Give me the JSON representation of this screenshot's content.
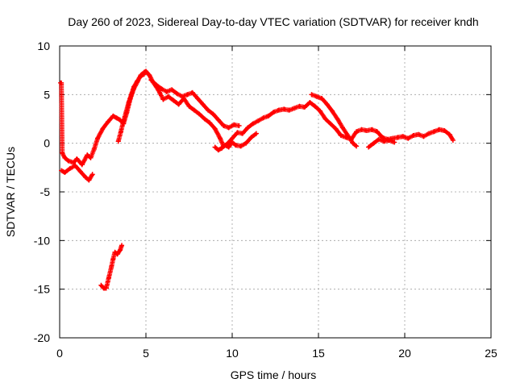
{
  "chart_data": {
    "type": "scatter",
    "title": "Day 260 of 2023, Sidereal Day-to-day VTEC variation (SDTVAR) for receiver kndh",
    "xlabel": "GPS time / hours",
    "ylabel": "SDTVAR / TECUs",
    "xlim": [
      0,
      25
    ],
    "ylim": [
      -20,
      10
    ],
    "x_ticks": [
      0,
      5,
      10,
      15,
      20,
      25
    ],
    "x_tick_labels": [
      "0",
      "5",
      "10",
      "15",
      "20",
      "25"
    ],
    "y_ticks": [
      -20,
      -15,
      -10,
      -5,
      0,
      5,
      10
    ],
    "y_tick_labels": [
      "-20",
      "-15",
      "-10",
      "-5",
      "0",
      "5",
      "10"
    ],
    "grid": true,
    "series_color": "#ff0000",
    "series": [
      {
        "name": "main-trace",
        "x": [
          0.05,
          0.1,
          0.15,
          0.3,
          0.5,
          0.8,
          1.0,
          1.3,
          1.6,
          1.8,
          2.0,
          2.2,
          2.5,
          2.8,
          3.1,
          3.3,
          3.5,
          3.7,
          3.9,
          4.1,
          4.3,
          4.5,
          4.7,
          4.9,
          5.0,
          5.2,
          5.4,
          5.6,
          5.8,
          6.0,
          6.3,
          6.6,
          6.9,
          7.2,
          7.5,
          7.8,
          8.1,
          8.4,
          8.7,
          9.0,
          9.3,
          9.5,
          9.7,
          10.0,
          10.3,
          10.6,
          10.9,
          11.2,
          11.5,
          11.8,
          12.1,
          12.4,
          12.7,
          13.0,
          13.3,
          13.6,
          13.9,
          14.2,
          14.5,
          14.8,
          15.1,
          15.4,
          15.7,
          16.0,
          16.3,
          16.6,
          16.9,
          17.2,
          17.5,
          17.8,
          18.1,
          18.4,
          18.7,
          19.0,
          19.3,
          19.6,
          19.9,
          20.2,
          20.5,
          20.8,
          21.1,
          21.4,
          21.7,
          22.0,
          22.3,
          22.6,
          22.8
        ],
        "y": [
          6.2,
          6.2,
          -1.0,
          -1.5,
          -1.8,
          -2.0,
          -1.6,
          -2.2,
          -1.2,
          -1.5,
          -0.6,
          0.5,
          1.5,
          2.2,
          2.8,
          2.6,
          2.4,
          2.0,
          3.2,
          4.6,
          5.6,
          6.3,
          7.0,
          7.3,
          7.4,
          7.0,
          6.3,
          5.8,
          5.2,
          4.5,
          4.8,
          4.4,
          4.0,
          4.6,
          3.8,
          3.4,
          3.0,
          2.5,
          2.1,
          1.5,
          0.5,
          -0.3,
          -0.1,
          0.5,
          1.1,
          1.0,
          1.6,
          2.0,
          2.3,
          2.6,
          2.8,
          3.2,
          3.4,
          3.5,
          3.4,
          3.6,
          3.8,
          3.7,
          4.2,
          3.8,
          3.3,
          2.5,
          2.0,
          1.5,
          0.8,
          0.6,
          0.4,
          1.2,
          1.4,
          1.3,
          1.4,
          1.2,
          0.6,
          0.4,
          0.5,
          0.6,
          0.7,
          0.5,
          0.8,
          0.9,
          0.7,
          1.0,
          1.2,
          1.4,
          1.3,
          0.9,
          0.3
        ]
      },
      {
        "name": "upper-branch",
        "x": [
          5.3,
          5.6,
          5.9,
          6.2,
          6.5,
          6.8,
          7.1,
          7.4,
          7.7,
          8.0,
          8.3,
          8.6,
          8.9,
          9.2,
          9.5,
          9.8,
          10.1,
          10.4
        ],
        "y": [
          6.5,
          6.0,
          5.6,
          5.3,
          5.5,
          5.1,
          4.8,
          5.0,
          5.2,
          4.6,
          4.0,
          3.4,
          3.0,
          2.4,
          1.8,
          1.6,
          1.9,
          1.8
        ]
      },
      {
        "name": "lower-branch",
        "x": [
          9.0,
          9.2,
          9.4,
          9.6,
          9.8,
          10.0,
          10.2,
          10.5,
          10.8,
          11.1,
          11.4
        ],
        "y": [
          -0.4,
          -0.7,
          -0.5,
          -0.2,
          -0.4,
          0.1,
          -0.2,
          -0.3,
          0.0,
          0.6,
          1.0
        ]
      },
      {
        "name": "mid-branch",
        "x": [
          14.6,
          14.9,
          15.2,
          15.5,
          15.8,
          16.1,
          16.4,
          16.7,
          17.0,
          17.2
        ],
        "y": [
          5.0,
          4.8,
          4.6,
          4.0,
          3.3,
          2.5,
          1.6,
          0.8,
          0.0,
          -0.3
        ]
      },
      {
        "name": "early-dip",
        "x": [
          0.1,
          0.3,
          0.6,
          0.9,
          1.2,
          1.5,
          1.7,
          1.9
        ],
        "y": [
          -2.8,
          -3.0,
          -2.6,
          -2.3,
          -2.9,
          -3.5,
          -3.8,
          -3.2
        ]
      },
      {
        "name": "rise-branch",
        "x": [
          3.4,
          3.55,
          3.7,
          3.85,
          4.0,
          4.15,
          4.3,
          4.5,
          4.7,
          4.9
        ],
        "y": [
          0.2,
          1.2,
          2.3,
          3.2,
          4.2,
          5.0,
          5.8,
          6.4,
          6.9,
          7.1
        ]
      },
      {
        "name": "late-offshoot",
        "x": [
          17.9,
          18.2,
          18.5,
          18.8,
          19.1,
          19.4
        ],
        "y": [
          -0.4,
          0.0,
          0.4,
          0.2,
          0.3,
          0.1
        ]
      },
      {
        "name": "outlier-segment",
        "x": [
          2.4,
          2.55,
          2.7,
          2.85,
          3.0,
          3.1,
          3.2,
          3.35,
          3.5,
          3.6
        ],
        "y": [
          -14.6,
          -14.9,
          -14.9,
          -13.8,
          -12.7,
          -11.9,
          -11.2,
          -11.4,
          -11.0,
          -10.5
        ]
      }
    ]
  }
}
